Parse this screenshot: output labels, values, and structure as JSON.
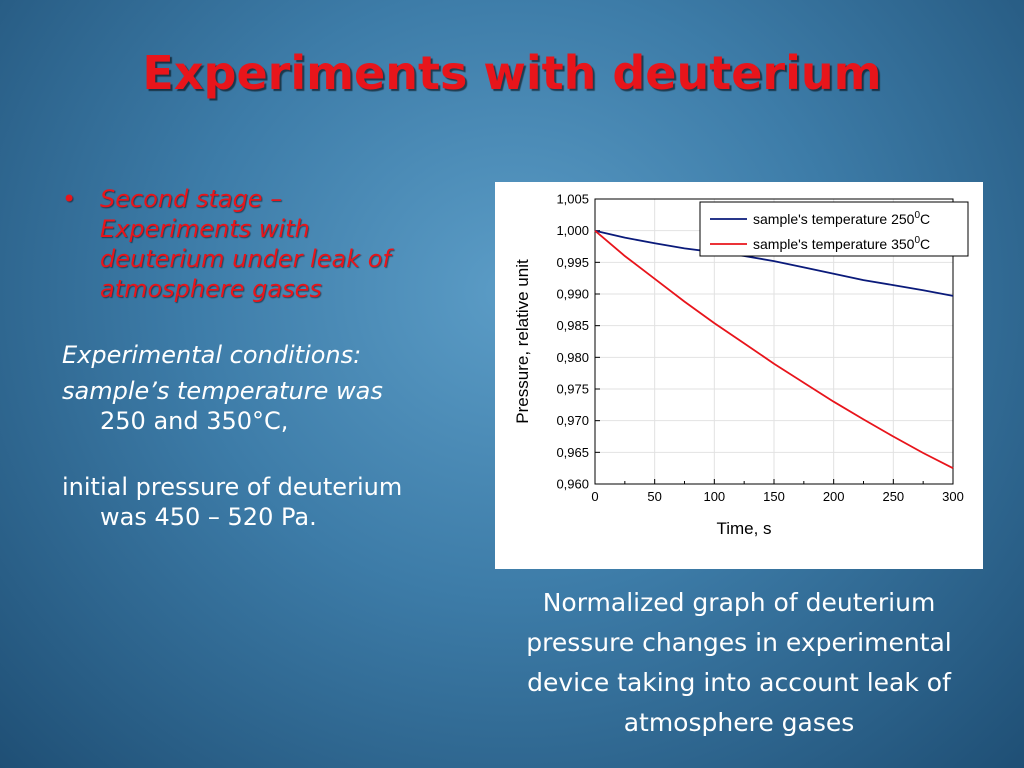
{
  "slide": {
    "title": "Experiments with deuterium"
  },
  "left": {
    "bullet_symbol": "•",
    "bullet_lines": [
      "Second stage –",
      "Experiments with",
      "deuterium under leak of",
      "atmosphere gases"
    ],
    "conditions_heading": "Experimental conditions:",
    "temp_line1": "sample’s temperature was",
    "temp_line2": "250 and 350°C,",
    "pressure_line1": "initial pressure of deuterium",
    "pressure_line2": "was 450 – 520 Pa."
  },
  "caption": {
    "lines": [
      "Normalized graph of deuterium",
      "pressure changes in experimental",
      "device taking into account leak of",
      "atmosphere gases"
    ]
  },
  "chart_data": {
    "type": "line",
    "xlabel": "Time, s",
    "ylabel": "Pressure, relative unit",
    "xlim": [
      0,
      300
    ],
    "ylim": [
      0.96,
      1.005
    ],
    "xticks": [
      0,
      50,
      100,
      150,
      200,
      250,
      300
    ],
    "yticks": [
      0.96,
      0.965,
      0.97,
      0.975,
      0.98,
      0.985,
      0.99,
      0.995,
      1.0,
      1.005
    ],
    "xtick_labels": [
      "0",
      "50",
      "100",
      "150",
      "200",
      "250",
      "300"
    ],
    "ytick_labels": [
      "0,960",
      "0,965",
      "0,970",
      "0,975",
      "0,980",
      "0,985",
      "0,990",
      "0,995",
      "1,000",
      "1,005"
    ],
    "grid": true,
    "legend_position": "top-right",
    "series": [
      {
        "name": "sample's temperature 250",
        "name_sup": "0",
        "name_suffix": "C",
        "color": "#0a1a7a",
        "x": [
          0,
          25,
          50,
          75,
          100,
          125,
          150,
          175,
          200,
          225,
          250,
          275,
          300
        ],
        "y": [
          1.0,
          0.9989,
          0.998,
          0.9972,
          0.9966,
          0.996,
          0.9952,
          0.9942,
          0.9932,
          0.9922,
          0.9914,
          0.9906,
          0.9897
        ]
      },
      {
        "name": "sample's temperature 350",
        "name_sup": "0",
        "name_suffix": "C",
        "color": "#e8141b",
        "x": [
          0,
          25,
          50,
          75,
          100,
          125,
          150,
          175,
          200,
          225,
          250,
          275,
          300
        ],
        "y": [
          1.0,
          0.996,
          0.9924,
          0.9888,
          0.9854,
          0.9822,
          0.979,
          0.976,
          0.973,
          0.9702,
          0.9675,
          0.9649,
          0.9625
        ]
      }
    ]
  }
}
